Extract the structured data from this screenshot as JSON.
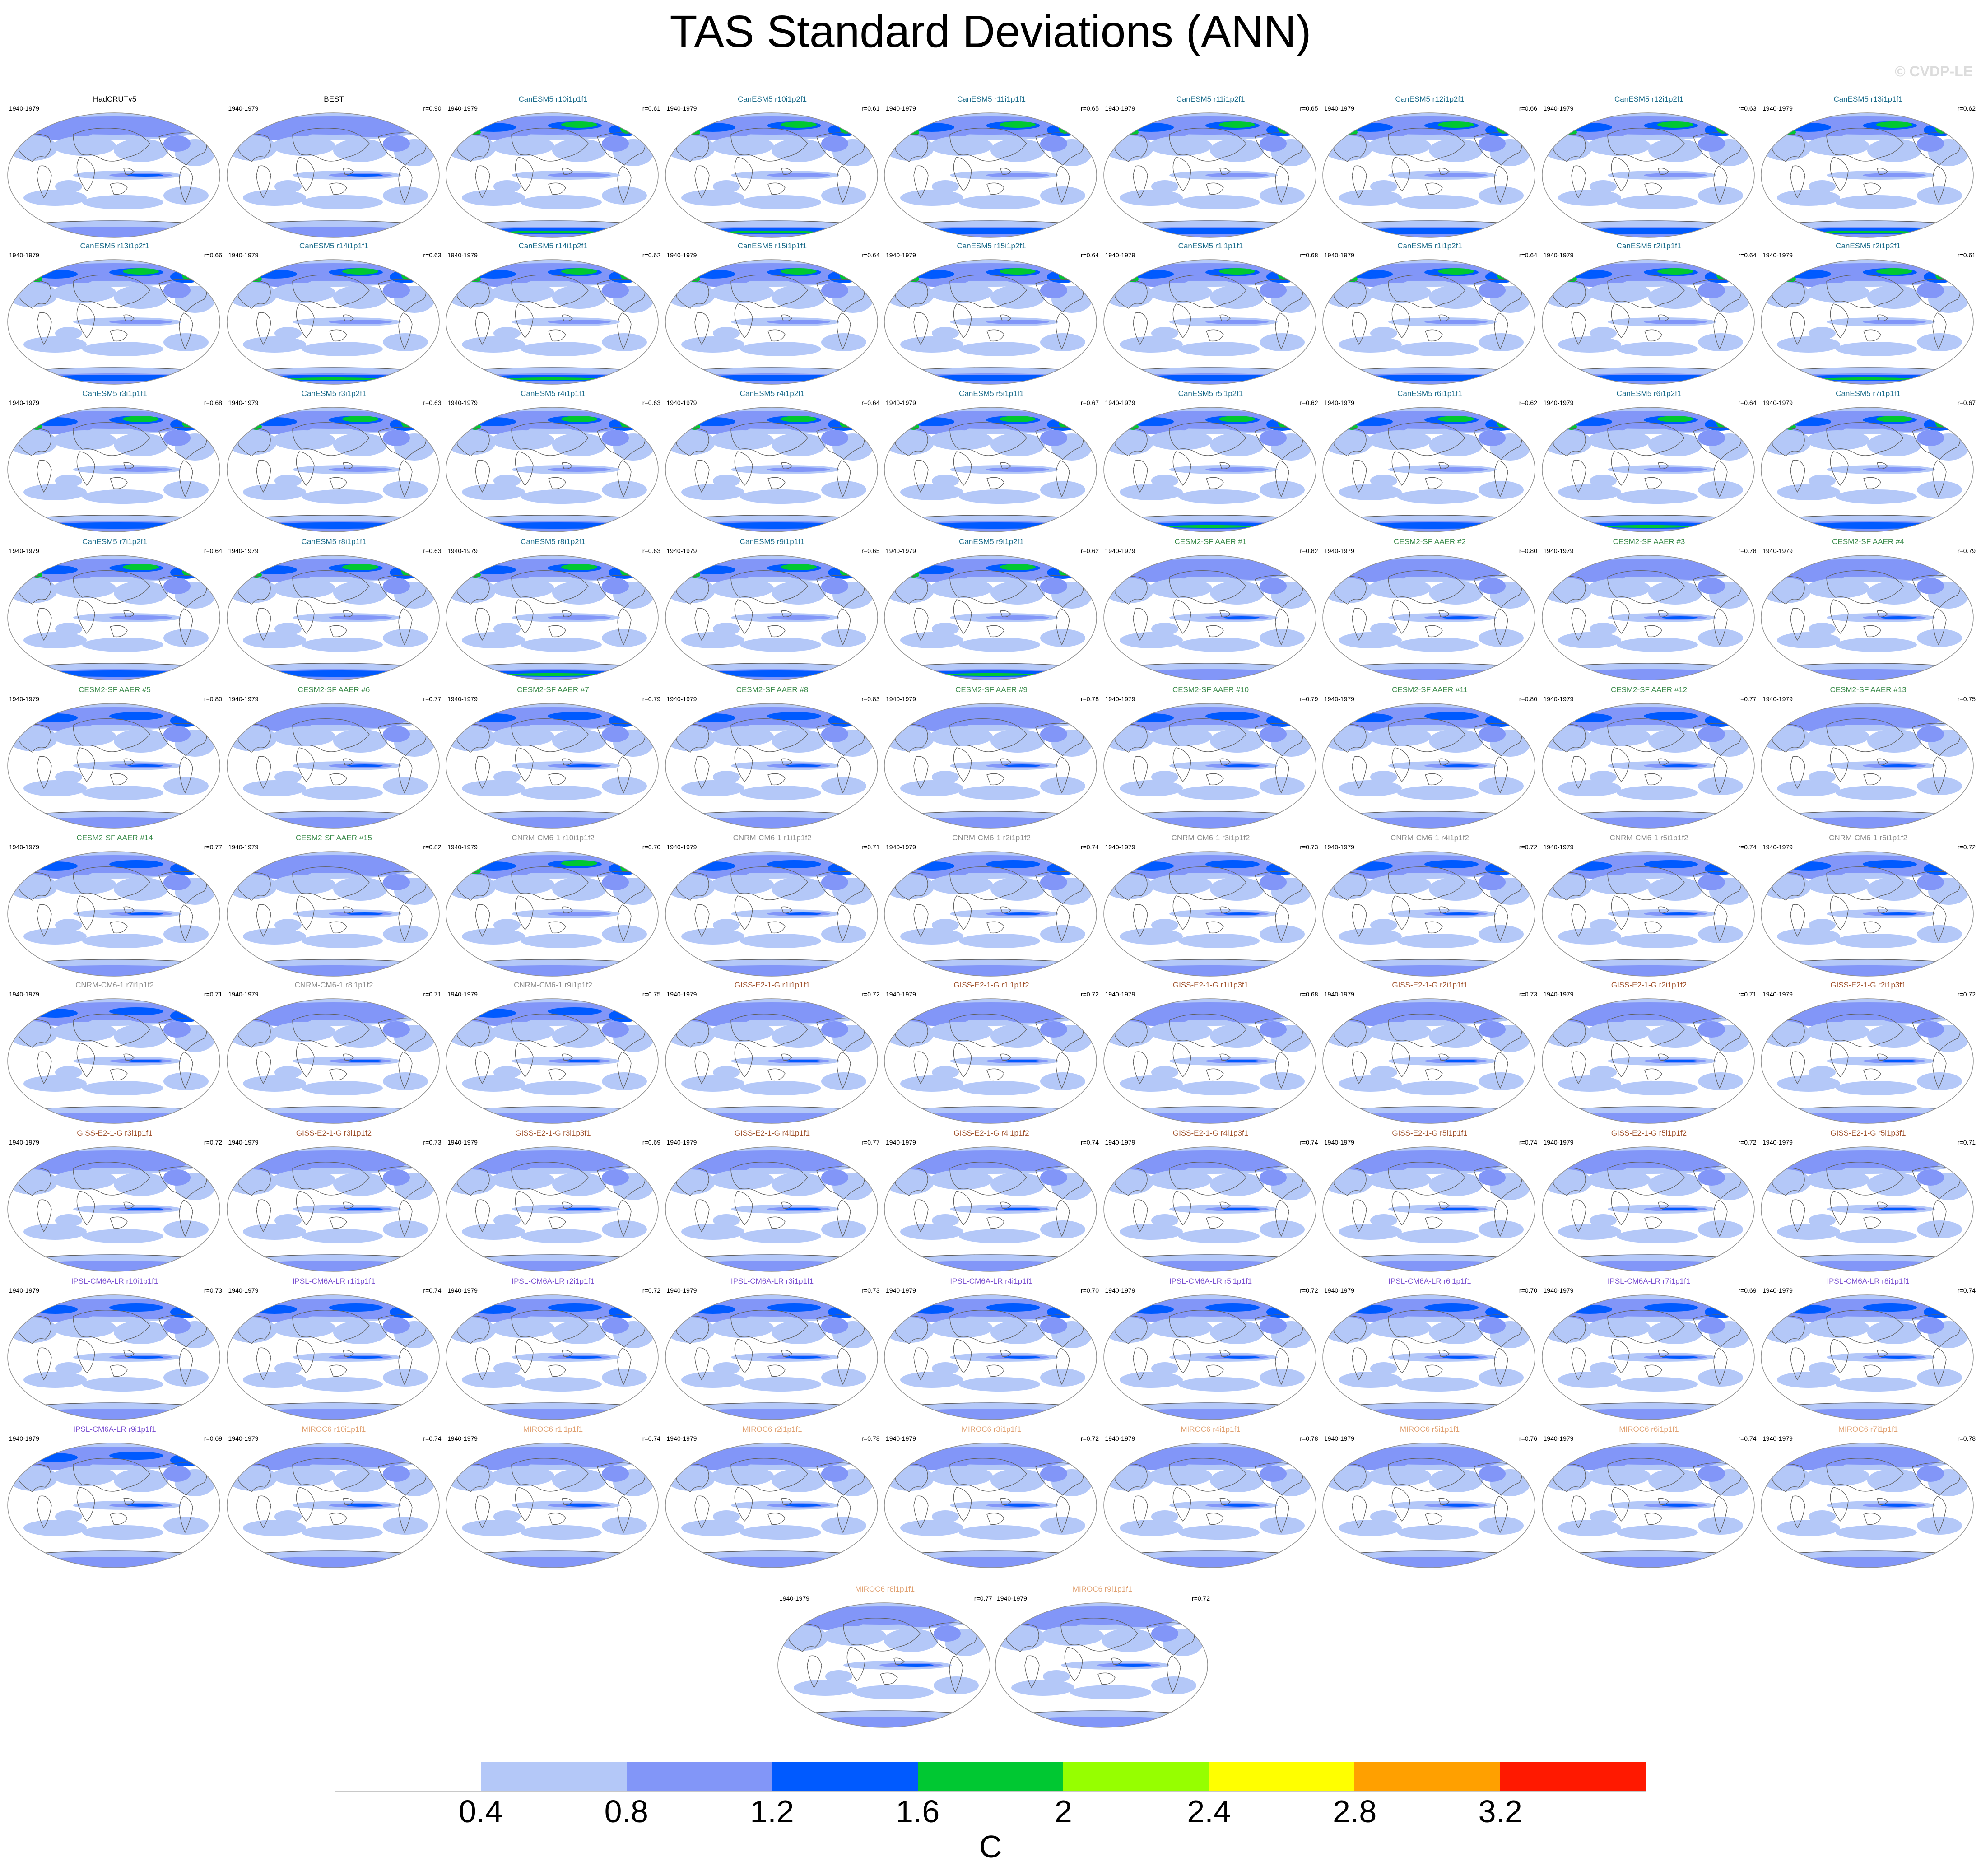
{
  "title": "TAS Standard Deviations (ANN)",
  "watermark": "© CVDP-LE",
  "period": "1940-1979",
  "colors": {
    "CanESM5": "#1a6b8a",
    "CESM2": "#3a8a4a",
    "CNRM": "#8c8c8c",
    "GISS": "#a0522d",
    "IPSL": "#7a4fd0",
    "MIROC": "#e0a070",
    "obs": "#000000"
  },
  "panels": [
    {
      "title": "HadCRUTv5",
      "r": "",
      "group": "obs",
      "intensity": 0.15
    },
    {
      "title": "BEST",
      "r": "r=0.90",
      "group": "obs",
      "intensity": 0.15
    },
    {
      "title": "CanESM5 r10i1p1f1",
      "r": "r=0.61",
      "group": "CanESM5",
      "intensity": 1.0
    },
    {
      "title": "CanESM5 r10i1p2f1",
      "r": "r=0.61",
      "group": "CanESM5",
      "intensity": 1.0
    },
    {
      "title": "CanESM5 r11i1p1f1",
      "r": "r=0.65",
      "group": "CanESM5",
      "intensity": 0.9
    },
    {
      "title": "CanESM5 r11i1p2f1",
      "r": "r=0.65",
      "group": "CanESM5",
      "intensity": 0.85
    },
    {
      "title": "CanESM5 r12i1p2f1",
      "r": "r=0.66",
      "group": "CanESM5",
      "intensity": 0.9
    },
    {
      "title": "CanESM5 r12i1p2f1",
      "r": "r=0.63",
      "group": "CanESM5",
      "intensity": 0.9
    },
    {
      "title": "CanESM5 r13i1p1f1",
      "r": "r=0.62",
      "group": "CanESM5",
      "intensity": 1.0
    },
    {
      "title": "CanESM5 r13i1p2f1",
      "r": "r=0.66",
      "group": "CanESM5",
      "intensity": 0.85
    },
    {
      "title": "CanESM5 r14i1p1f1",
      "r": "r=0.63",
      "group": "CanESM5",
      "intensity": 1.0
    },
    {
      "title": "CanESM5 r14i1p2f1",
      "r": "r=0.62",
      "group": "CanESM5",
      "intensity": 0.95
    },
    {
      "title": "CanESM5 r15i1p1f1",
      "r": "r=0.64",
      "group": "CanESM5",
      "intensity": 0.9
    },
    {
      "title": "CanESM5 r15i1p2f1",
      "r": "r=0.64",
      "group": "CanESM5",
      "intensity": 0.9
    },
    {
      "title": "CanESM5 r1i1p1f1",
      "r": "r=0.68",
      "group": "CanESM5",
      "intensity": 0.8
    },
    {
      "title": "CanESM5 r1i1p2f1",
      "r": "r=0.64",
      "group": "CanESM5",
      "intensity": 0.9
    },
    {
      "title": "CanESM5 r2i1p1f1",
      "r": "r=0.64",
      "group": "CanESM5",
      "intensity": 0.85
    },
    {
      "title": "CanESM5 r2i1p2f1",
      "r": "r=0.61",
      "group": "CanESM5",
      "intensity": 1.0
    },
    {
      "title": "CanESM5 r3i1p1f1",
      "r": "r=0.68",
      "group": "CanESM5",
      "intensity": 0.8
    },
    {
      "title": "CanESM5 r3i1p2f1",
      "r": "r=0.63",
      "group": "CanESM5",
      "intensity": 0.85
    },
    {
      "title": "CanESM5 r4i1p1f1",
      "r": "r=0.63",
      "group": "CanESM5",
      "intensity": 0.85
    },
    {
      "title": "CanESM5 r4i1p2f1",
      "r": "r=0.64",
      "group": "CanESM5",
      "intensity": 0.85
    },
    {
      "title": "CanESM5 r5i1p1f1",
      "r": "r=0.67",
      "group": "CanESM5",
      "intensity": 0.8
    },
    {
      "title": "CanESM5 r5i1p2f1",
      "r": "r=0.62",
      "group": "CanESM5",
      "intensity": 1.0
    },
    {
      "title": "CanESM5 r6i1p1f1",
      "r": "r=0.62",
      "group": "CanESM5",
      "intensity": 0.9
    },
    {
      "title": "CanESM5 r6i1p2f1",
      "r": "r=0.64",
      "group": "CanESM5",
      "intensity": 1.0
    },
    {
      "title": "CanESM5 r7i1p1f1",
      "r": "r=0.67",
      "group": "CanESM5",
      "intensity": 0.85
    },
    {
      "title": "CanESM5 r7i1p2f1",
      "r": "r=0.64",
      "group": "CanESM5",
      "intensity": 0.85
    },
    {
      "title": "CanESM5 r8i1p1f1",
      "r": "r=0.63",
      "group": "CanESM5",
      "intensity": 0.85
    },
    {
      "title": "CanESM5 r8i1p2f1",
      "r": "r=0.63",
      "group": "CanESM5",
      "intensity": 1.0
    },
    {
      "title": "CanESM5 r9i1p1f1",
      "r": "r=0.65",
      "group": "CanESM5",
      "intensity": 0.8
    },
    {
      "title": "CanESM5 r9i1p2f1",
      "r": "r=0.62",
      "group": "CanESM5",
      "intensity": 1.0
    },
    {
      "title": "CESM2-SF AAER #1",
      "r": "r=0.82",
      "group": "CESM2",
      "intensity": 0.45
    },
    {
      "title": "CESM2-SF AAER #2",
      "r": "r=0.80",
      "group": "CESM2",
      "intensity": 0.4
    },
    {
      "title": "CESM2-SF AAER #3",
      "r": "r=0.78",
      "group": "CESM2",
      "intensity": 0.4
    },
    {
      "title": "CESM2-SF AAER #4",
      "r": "r=0.79",
      "group": "CESM2",
      "intensity": 0.4
    },
    {
      "title": "CESM2-SF AAER #5",
      "r": "r=0.80",
      "group": "CESM2",
      "intensity": 0.5
    },
    {
      "title": "CESM2-SF AAER #6",
      "r": "r=0.77",
      "group": "CESM2",
      "intensity": 0.45
    },
    {
      "title": "CESM2-SF AAER #7",
      "r": "r=0.79",
      "group": "CESM2",
      "intensity": 0.6
    },
    {
      "title": "CESM2-SF AAER #8",
      "r": "r=0.83",
      "group": "CESM2",
      "intensity": 0.55
    },
    {
      "title": "CESM2-SF AAER #9",
      "r": "r=0.78",
      "group": "CESM2",
      "intensity": 0.45
    },
    {
      "title": "CESM2-SF AAER #10",
      "r": "r=0.79",
      "group": "CESM2",
      "intensity": 0.55
    },
    {
      "title": "CESM2-SF AAER #11",
      "r": "r=0.80",
      "group": "CESM2",
      "intensity": 0.5
    },
    {
      "title": "CESM2-SF AAER #12",
      "r": "r=0.77",
      "group": "CESM2",
      "intensity": 0.5
    },
    {
      "title": "CESM2-SF AAER #13",
      "r": "r=0.75",
      "group": "CESM2",
      "intensity": 0.45
    },
    {
      "title": "CESM2-SF AAER #14",
      "r": "r=0.77",
      "group": "CESM2",
      "intensity": 0.55
    },
    {
      "title": "CESM2-SF AAER #15",
      "r": "r=0.82",
      "group": "CESM2",
      "intensity": 0.45
    },
    {
      "title": "CNRM-CM6-1 r10i1p1f2",
      "r": "r=0.70",
      "group": "CNRM",
      "intensity": 0.7
    },
    {
      "title": "CNRM-CM6-1 r1i1p1f2",
      "r": "r=0.71",
      "group": "CNRM",
      "intensity": 0.55
    },
    {
      "title": "CNRM-CM6-1 r2i1p1f2",
      "r": "r=0.74",
      "group": "CNRM",
      "intensity": 0.55
    },
    {
      "title": "CNRM-CM6-1 r3i1p1f2",
      "r": "r=0.73",
      "group": "CNRM",
      "intensity": 0.55
    },
    {
      "title": "CNRM-CM6-1 r4i1p1f2",
      "r": "r=0.72",
      "group": "CNRM",
      "intensity": 0.55
    },
    {
      "title": "CNRM-CM6-1 r5i1p1f2",
      "r": "r=0.74",
      "group": "CNRM",
      "intensity": 0.55
    },
    {
      "title": "CNRM-CM6-1 r6i1p1f2",
      "r": "r=0.72",
      "group": "CNRM",
      "intensity": 0.55
    },
    {
      "title": "CNRM-CM6-1 r7i1p1f2",
      "r": "r=0.71",
      "group": "CNRM",
      "intensity": 0.5
    },
    {
      "title": "CNRM-CM6-1 r8i1p1f2",
      "r": "r=0.71",
      "group": "CNRM",
      "intensity": 0.45
    },
    {
      "title": "CNRM-CM6-1 r9i1p1f2",
      "r": "r=0.75",
      "group": "CNRM",
      "intensity": 0.5
    },
    {
      "title": "GISS-E2-1-G r1i1p1f1",
      "r": "r=0.72",
      "group": "GISS",
      "intensity": 0.4
    },
    {
      "title": "GISS-E2-1-G r1i1p1f2",
      "r": "r=0.72",
      "group": "GISS",
      "intensity": 0.4
    },
    {
      "title": "GISS-E2-1-G r1i1p3f1",
      "r": "r=0.68",
      "group": "GISS",
      "intensity": 0.45
    },
    {
      "title": "GISS-E2-1-G r2i1p1f1",
      "r": "r=0.73",
      "group": "GISS",
      "intensity": 0.4
    },
    {
      "title": "GISS-E2-1-G r2i1p1f2",
      "r": "r=0.71",
      "group": "GISS",
      "intensity": 0.4
    },
    {
      "title": "GISS-E2-1-G r2i1p3f1",
      "r": "r=0.72",
      "group": "GISS",
      "intensity": 0.4
    },
    {
      "title": "GISS-E2-1-G r3i1p1f1",
      "r": "r=0.72",
      "group": "GISS",
      "intensity": 0.4
    },
    {
      "title": "GISS-E2-1-G r3i1p1f2",
      "r": "r=0.73",
      "group": "GISS",
      "intensity": 0.4
    },
    {
      "title": "GISS-E2-1-G r3i1p3f1",
      "r": "r=0.69",
      "group": "GISS",
      "intensity": 0.4
    },
    {
      "title": "GISS-E2-1-G r4i1p1f1",
      "r": "r=0.77",
      "group": "GISS",
      "intensity": 0.4
    },
    {
      "title": "GISS-E2-1-G r4i1p1f2",
      "r": "r=0.74",
      "group": "GISS",
      "intensity": 0.4
    },
    {
      "title": "GISS-E2-1-G r4i1p3f1",
      "r": "r=0.74",
      "group": "GISS",
      "intensity": 0.4
    },
    {
      "title": "GISS-E2-1-G r5i1p1f1",
      "r": "r=0.74",
      "group": "GISS",
      "intensity": 0.4
    },
    {
      "title": "GISS-E2-1-G r5i1p1f2",
      "r": "r=0.72",
      "group": "GISS",
      "intensity": 0.4
    },
    {
      "title": "GISS-E2-1-G r5i1p3f1",
      "r": "r=0.71",
      "group": "GISS",
      "intensity": 0.4
    },
    {
      "title": "IPSL-CM6A-LR r10i1p1f1",
      "r": "r=0.73",
      "group": "IPSL",
      "intensity": 0.55
    },
    {
      "title": "IPSL-CM6A-LR r1i1p1f1",
      "r": "r=0.74",
      "group": "IPSL",
      "intensity": 0.5
    },
    {
      "title": "IPSL-CM6A-LR r2i1p1f1",
      "r": "r=0.72",
      "group": "IPSL",
      "intensity": 0.5
    },
    {
      "title": "IPSL-CM6A-LR r3i1p1f1",
      "r": "r=0.73",
      "group": "IPSL",
      "intensity": 0.5
    },
    {
      "title": "IPSL-CM6A-LR r4i1p1f1",
      "r": "r=0.70",
      "group": "IPSL",
      "intensity": 0.5
    },
    {
      "title": "IPSL-CM6A-LR r5i1p1f1",
      "r": "r=0.72",
      "group": "IPSL",
      "intensity": 0.5
    },
    {
      "title": "IPSL-CM6A-LR r6i1p1f1",
      "r": "r=0.70",
      "group": "IPSL",
      "intensity": 0.5
    },
    {
      "title": "IPSL-CM6A-LR r7i1p1f1",
      "r": "r=0.69",
      "group": "IPSL",
      "intensity": 0.5
    },
    {
      "title": "IPSL-CM6A-LR r8i1p1f1",
      "r": "r=0.74",
      "group": "IPSL",
      "intensity": 0.5
    },
    {
      "title": "IPSL-CM6A-LR r9i1p1f1",
      "r": "r=0.69",
      "group": "IPSL",
      "intensity": 0.6
    },
    {
      "title": "MIROC6 r10i1p1f1",
      "r": "r=0.74",
      "group": "MIROC",
      "intensity": 0.45
    },
    {
      "title": "MIROC6 r1i1p1f1",
      "r": "r=0.74",
      "group": "MIROC",
      "intensity": 0.4
    },
    {
      "title": "MIROC6 r2i1p1f1",
      "r": "r=0.78",
      "group": "MIROC",
      "intensity": 0.35
    },
    {
      "title": "MIROC6 r3i1p1f1",
      "r": "r=0.72",
      "group": "MIROC",
      "intensity": 0.4
    },
    {
      "title": "MIROC6 r4i1p1f1",
      "r": "r=0.78",
      "group": "MIROC",
      "intensity": 0.4
    },
    {
      "title": "MIROC6 r5i1p1f1",
      "r": "r=0.76",
      "group": "MIROC",
      "intensity": 0.35
    },
    {
      "title": "MIROC6 r6i1p1f1",
      "r": "r=0.74",
      "group": "MIROC",
      "intensity": 0.45
    },
    {
      "title": "MIROC6 r7i1p1f1",
      "r": "r=0.78",
      "group": "MIROC",
      "intensity": 0.35
    },
    {
      "title": "MIROC6 r8i1p1f1",
      "r": "r=0.77",
      "group": "MIROC",
      "intensity": 0.45
    },
    {
      "title": "MIROC6 r9i1p1f1",
      "r": "r=0.72",
      "group": "MIROC",
      "intensity": 0.4
    }
  ],
  "colorbar": {
    "colors": [
      "#ffffff",
      "#b4c8f8",
      "#8296f8",
      "#005aff",
      "#00c832",
      "#96ff00",
      "#ffff00",
      "#ffa000",
      "#ff1900"
    ],
    "labels": [
      "0.4",
      "0.8",
      "1.2",
      "1.6",
      "2",
      "2.4",
      "2.8",
      "3.2"
    ],
    "units": "C"
  }
}
